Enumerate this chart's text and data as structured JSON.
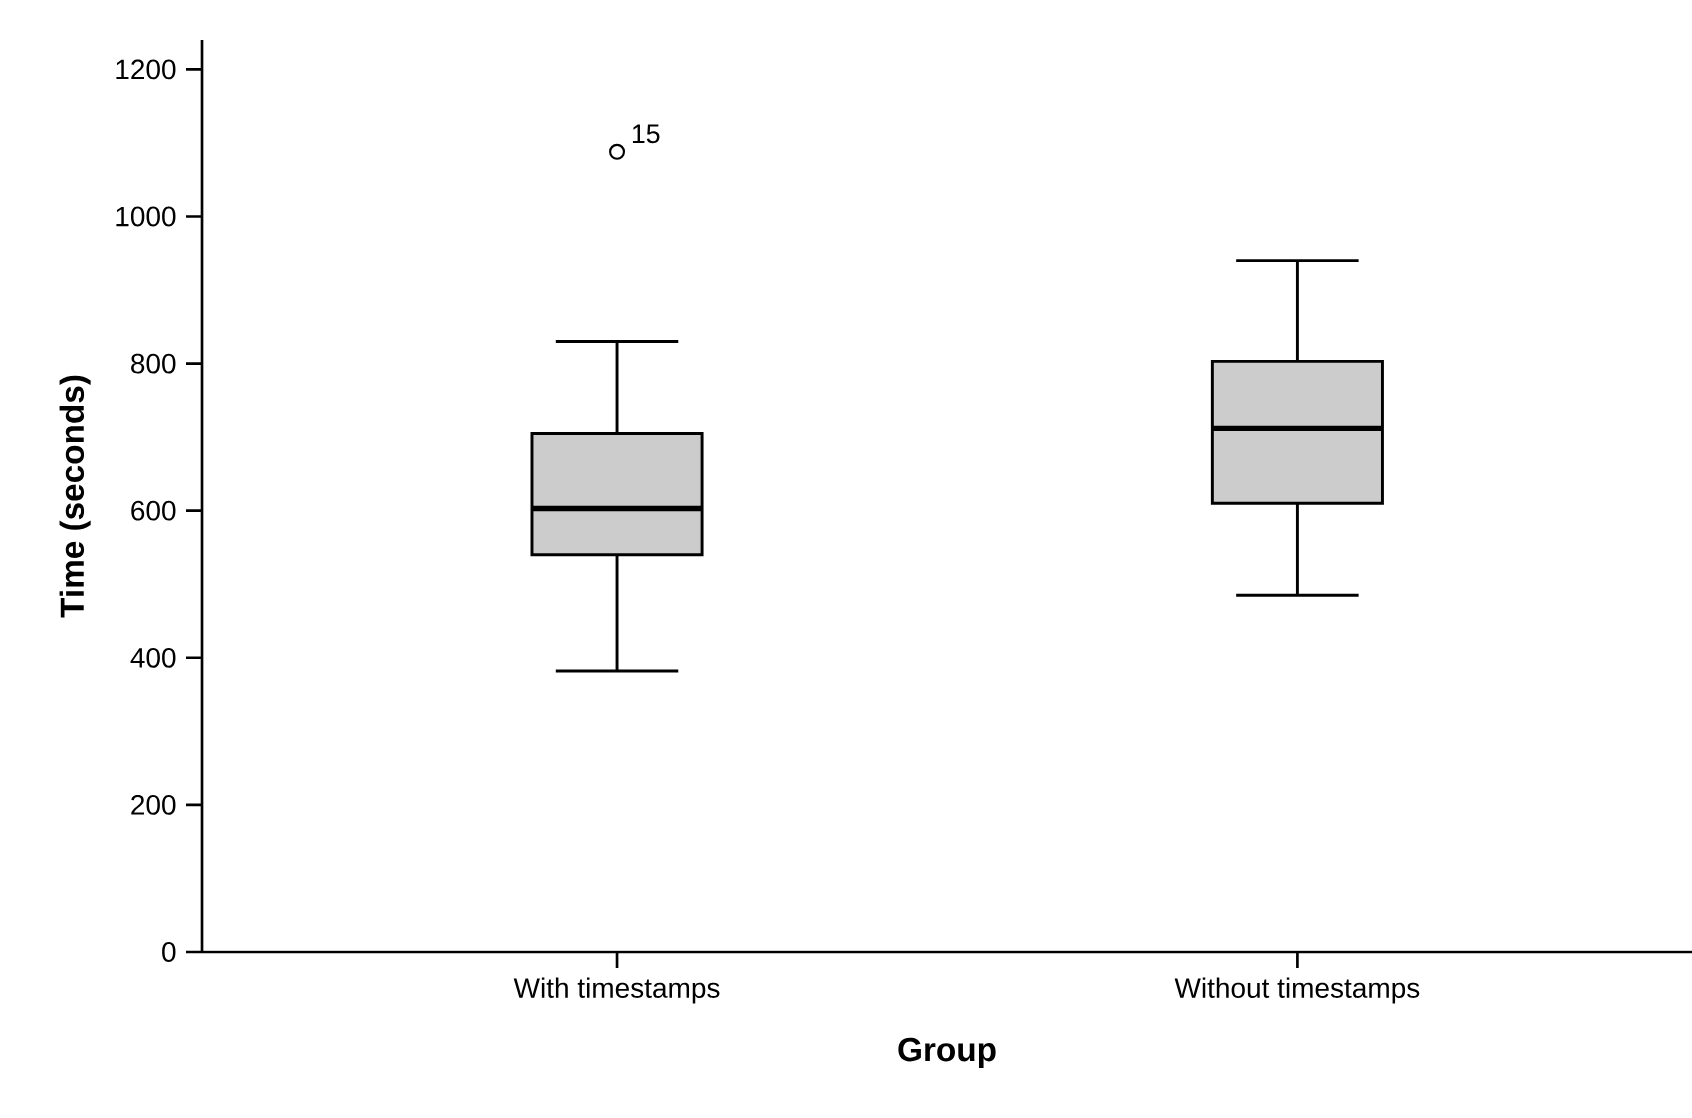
{
  "chart_data": {
    "type": "box",
    "xlabel": "Group",
    "ylabel": "Time (seconds)",
    "categories": [
      "With timestamps",
      "Without timestamps"
    ],
    "boxes": [
      {
        "low": 382,
        "q1": 540,
        "median": 603,
        "q3": 705,
        "high": 830,
        "outliers": [
          1088
        ]
      },
      {
        "low": 485,
        "q1": 610,
        "median": 712,
        "q3": 803,
        "high": 940
      }
    ],
    "color": "#cccccc",
    "ylim": [
      0,
      1240
    ],
    "yticks": [
      0,
      200,
      400,
      600,
      800,
      1000,
      1200
    ],
    "annotations": [
      "15"
    ]
  }
}
